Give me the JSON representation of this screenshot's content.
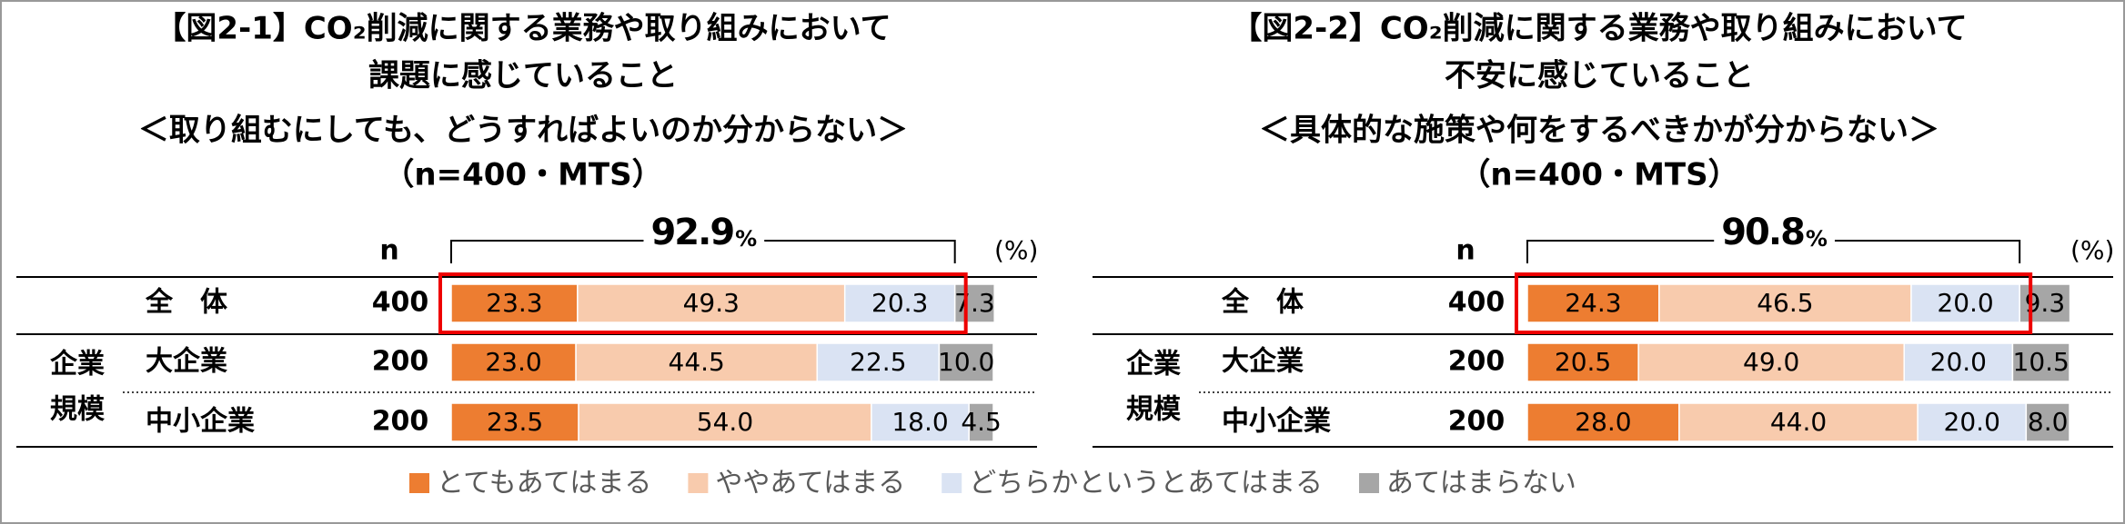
{
  "chart_data": [
    {
      "type": "bar",
      "orientation": "horizontal",
      "stacked": true,
      "title": [
        "【図2-1】CO₂削減に関する業務や取り組みにおいて",
        "課題に感じていること",
        "＜取り組むにしても、どうすればよいのか分からない＞",
        "（n=400・MTS）"
      ],
      "n_header": "n",
      "unit": "(%)",
      "group_label": [
        "企業",
        "規模"
      ],
      "categories": [
        "全　体",
        "大企業",
        "中小企業"
      ],
      "n": [
        400,
        200,
        200
      ],
      "total": 92.9,
      "total_unit": "%",
      "xlim": [
        0,
        100
      ],
      "series": [
        {
          "name": "とてもあてはまる",
          "color": "#ed7d31",
          "values": [
            23.3,
            23.0,
            23.5
          ],
          "value_labels": [
            "23.3",
            "23.0",
            "23.5"
          ]
        },
        {
          "name": "ややあてはまる",
          "color": "#f8cbad",
          "values": [
            49.3,
            44.5,
            54.0
          ],
          "value_labels": [
            "49.3",
            "44.5",
            "54.0"
          ]
        },
        {
          "name": "どちらかというとあてはまる",
          "color": "#dae3f3",
          "values": [
            20.3,
            22.5,
            18.0
          ],
          "value_labels": [
            "20.3",
            "22.5",
            "18.0"
          ]
        },
        {
          "name": "あてはまらない",
          "color": "#a6a6a6",
          "values": [
            7.3,
            10.0,
            4.5
          ],
          "value_labels": [
            "7.3",
            "10.0",
            "4.5"
          ]
        }
      ]
    },
    {
      "type": "bar",
      "orientation": "horizontal",
      "stacked": true,
      "title": [
        "【図2-2】CO₂削減に関する業務や取り組みにおいて",
        "不安に感じていること",
        "＜具体的な施策や何をするべきかが分からない＞",
        "（n=400・MTS）"
      ],
      "n_header": "n",
      "unit": "(%)",
      "group_label": [
        "企業",
        "規模"
      ],
      "categories": [
        "全　体",
        "大企業",
        "中小企業"
      ],
      "n": [
        400,
        200,
        200
      ],
      "total": 90.8,
      "total_unit": "%",
      "xlim": [
        0,
        100
      ],
      "series": [
        {
          "name": "とてもあてはまる",
          "color": "#ed7d31",
          "values": [
            24.3,
            20.5,
            28.0
          ],
          "value_labels": [
            "24.3",
            "20.5",
            "28.0"
          ]
        },
        {
          "name": "ややあてはまる",
          "color": "#f8cbad",
          "values": [
            46.5,
            49.0,
            44.0
          ],
          "value_labels": [
            "46.5",
            "49.0",
            "44.0"
          ]
        },
        {
          "name": "どちらかというとあてはまる",
          "color": "#dae3f3",
          "values": [
            20.0,
            20.0,
            20.0
          ],
          "value_labels": [
            "20.0",
            "20.0",
            "20.0"
          ]
        },
        {
          "name": "あてはまらない",
          "color": "#a6a6a6",
          "values": [
            9.3,
            10.5,
            8.0
          ],
          "value_labels": [
            "9.3",
            "10.5",
            "8.0"
          ]
        }
      ]
    }
  ]
}
